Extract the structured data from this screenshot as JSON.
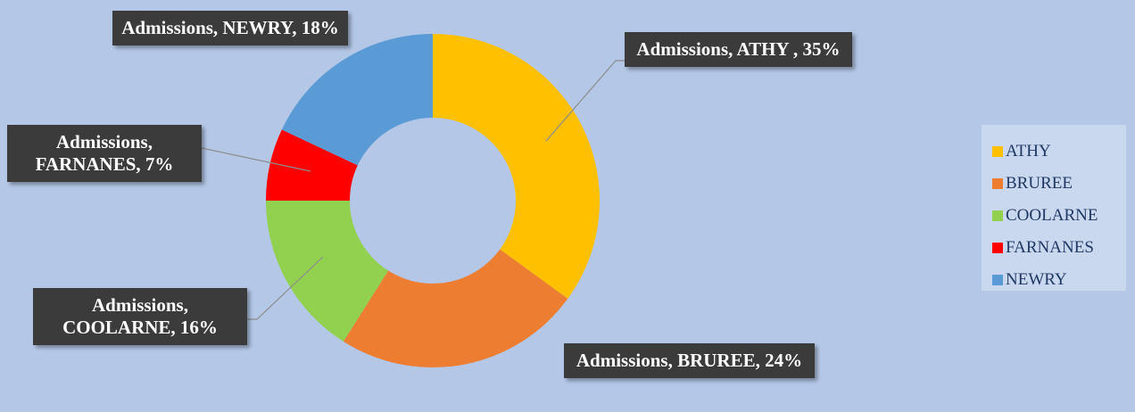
{
  "chart_data": {
    "type": "donut",
    "categories": [
      "ATHY",
      "BRUREE",
      "COOLARNE",
      "FARNANES",
      "NEWRY"
    ],
    "values": [
      35,
      24,
      16,
      7,
      18
    ],
    "value_labels": [
      "Admissions, ATHY , 35%",
      "Admissions, BRUREE, 24%",
      "Admissions, COOLARNE, 16%",
      "Admissions, FARNANES, 7%",
      "Admissions, NEWRY, 18%"
    ],
    "colors": [
      "#ffc000",
      "#ed7d31",
      "#92d050",
      "#ff0000",
      "#5b9bd5"
    ],
    "legend": "right"
  }
}
